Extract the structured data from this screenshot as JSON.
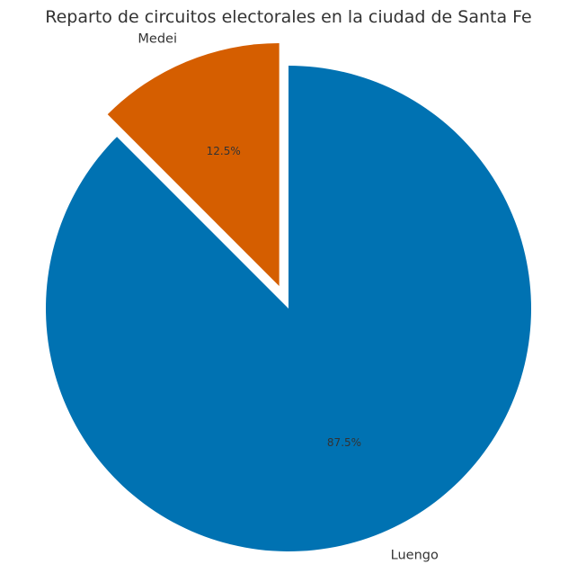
{
  "chart_data": {
    "type": "pie",
    "title": "Reparto de circuitos electorales en la ciudad de Santa Fe",
    "slices": [
      {
        "label": "Luengo",
        "value": 87.5,
        "pct_label": "87.5%",
        "color": "#0072B2",
        "exploded": false
      },
      {
        "label": "Medei",
        "value": 12.5,
        "pct_label": "12.5%",
        "color": "#D55E00",
        "exploded": true
      }
    ],
    "start_angle_deg": 135,
    "direction": "counterclockwise"
  }
}
